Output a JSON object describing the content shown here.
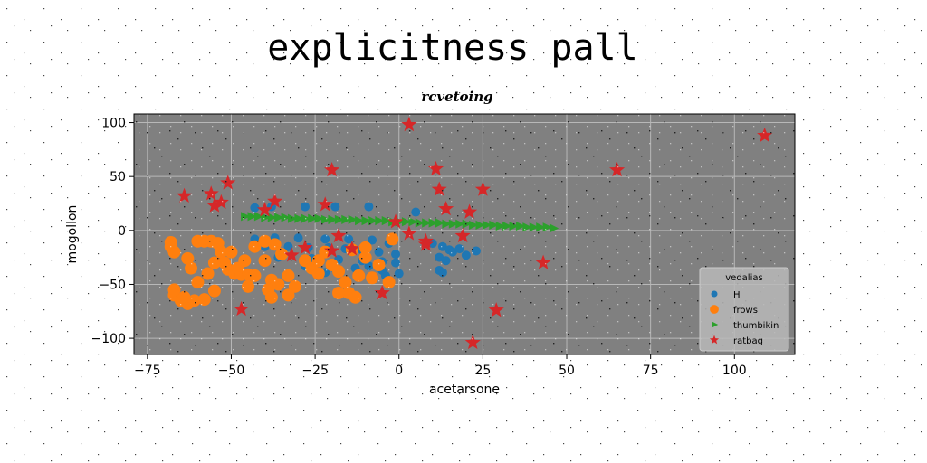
{
  "chart_data": {
    "type": "scatter",
    "suptitle": "explicitness pall",
    "title": "rcvetoing",
    "xlabel": "acetarsone",
    "ylabel": "mogollon",
    "xlim": [
      -79,
      118
    ],
    "ylim": [
      -115,
      108
    ],
    "xticks": [
      -75,
      -50,
      -25,
      0,
      25,
      50,
      75,
      100
    ],
    "yticks": [
      -100,
      -50,
      0,
      50,
      100
    ],
    "grid": true,
    "legend": {
      "title": "vedalias",
      "placement": "lower-right"
    },
    "colors": {
      "plot_bg": "#808080",
      "grid": "#b8b8b8"
    },
    "series": [
      {
        "name": "H",
        "marker": "circle",
        "color": "#1f77b4",
        "points": [
          [
            -43,
            21
          ],
          [
            -38,
            22
          ],
          [
            -28,
            22
          ],
          [
            -19,
            22
          ],
          [
            -9,
            22
          ],
          [
            5,
            17
          ],
          [
            -43,
            -8
          ],
          [
            -37,
            -7
          ],
          [
            -30,
            -7
          ],
          [
            -22,
            -8
          ],
          [
            -15,
            -8
          ],
          [
            -8,
            -9
          ],
          [
            -3,
            -12
          ],
          [
            -40,
            -15
          ],
          [
            -33,
            -15
          ],
          [
            -27,
            -16
          ],
          [
            -21,
            -16
          ],
          [
            -16,
            -17
          ],
          [
            -11,
            -18
          ],
          [
            -6,
            -20
          ],
          [
            -36,
            -25
          ],
          [
            -26,
            -26
          ],
          [
            -18,
            -27
          ],
          [
            -11,
            -28
          ],
          [
            -5,
            -29
          ],
          [
            -1,
            -30
          ],
          [
            -28,
            -33
          ],
          [
            -20,
            -34
          ],
          [
            -13,
            -35
          ],
          [
            -5,
            -37
          ],
          [
            -22,
            -39
          ],
          [
            -12,
            -40
          ],
          [
            -4,
            -42
          ],
          [
            0,
            -40
          ],
          [
            10,
            -12
          ],
          [
            13,
            -15
          ],
          [
            15,
            -18
          ],
          [
            16,
            -20
          ],
          [
            18,
            -17
          ],
          [
            12,
            -25
          ],
          [
            14,
            -28
          ],
          [
            23,
            -19
          ],
          [
            20,
            -23
          ],
          [
            12,
            -37
          ],
          [
            13,
            -39
          ],
          [
            -9,
            -33
          ],
          [
            -1,
            -22
          ]
        ]
      },
      {
        "name": "frows",
        "marker": "circle",
        "color": "#ff7f0e",
        "points": [
          [
            -68,
            -11
          ],
          [
            -68,
            -15
          ],
          [
            -67,
            -20
          ],
          [
            -67,
            -55
          ],
          [
            -67,
            -60
          ],
          [
            -65,
            -65
          ],
          [
            -63,
            -68
          ],
          [
            -60,
            -10
          ],
          [
            -58,
            -10
          ],
          [
            -56,
            -10
          ],
          [
            -54,
            -12
          ],
          [
            -53,
            -20
          ],
          [
            -52,
            -30
          ],
          [
            -51,
            -36
          ],
          [
            -49,
            -40
          ],
          [
            -47,
            -41
          ],
          [
            -45,
            -41
          ],
          [
            -43,
            -42
          ],
          [
            -64,
            -62
          ],
          [
            -61,
            -65
          ],
          [
            -58,
            -64
          ],
          [
            -55,
            -56
          ],
          [
            -63,
            -26
          ],
          [
            -62,
            -35
          ],
          [
            -60,
            -48
          ],
          [
            -40,
            -10
          ],
          [
            -37,
            -13
          ],
          [
            -35,
            -22
          ],
          [
            -40,
            -28
          ],
          [
            -38,
            -46
          ],
          [
            -36,
            -50
          ],
          [
            -39,
            -55
          ],
          [
            -38,
            -62
          ],
          [
            -33,
            -42
          ],
          [
            -31,
            -52
          ],
          [
            -28,
            -28
          ],
          [
            -26,
            -35
          ],
          [
            -24,
            -28
          ],
          [
            -22,
            -20
          ],
          [
            -20,
            -32
          ],
          [
            -18,
            -38
          ],
          [
            -16,
            -48
          ],
          [
            -15,
            -58
          ],
          [
            -13,
            -62
          ],
          [
            -12,
            -42
          ],
          [
            -18,
            -58
          ],
          [
            -10,
            -16
          ],
          [
            -10,
            -25
          ],
          [
            -6,
            -32
          ],
          [
            -3,
            -48
          ],
          [
            -2,
            -8
          ],
          [
            -43,
            -15
          ],
          [
            -46,
            -28
          ],
          [
            -48,
            -35
          ],
          [
            -50,
            -20
          ],
          [
            -55,
            -30
          ],
          [
            -57,
            -40
          ],
          [
            -45,
            -52
          ],
          [
            -33,
            -60
          ],
          [
            -24,
            -40
          ],
          [
            -14,
            -18
          ],
          [
            -8,
            -44
          ]
        ]
      },
      {
        "name": "thumbikin",
        "marker": "triangle",
        "color": "#2ca02c",
        "points": [
          [
            -46,
            13
          ],
          [
            -44,
            13
          ],
          [
            -42,
            13
          ],
          [
            -40,
            12
          ],
          [
            -38,
            12
          ],
          [
            -36,
            12
          ],
          [
            -34,
            12
          ],
          [
            -32,
            11
          ],
          [
            -30,
            11
          ],
          [
            -28,
            11
          ],
          [
            -26,
            11
          ],
          [
            -24,
            11
          ],
          [
            -22,
            10
          ],
          [
            -20,
            10
          ],
          [
            -18,
            10
          ],
          [
            -16,
            10
          ],
          [
            -14,
            10
          ],
          [
            -12,
            9
          ],
          [
            -10,
            9
          ],
          [
            -8,
            9
          ],
          [
            -6,
            9
          ],
          [
            -4,
            9
          ],
          [
            -2,
            8
          ],
          [
            0,
            8
          ],
          [
            2,
            8
          ],
          [
            4,
            8
          ],
          [
            6,
            7
          ],
          [
            8,
            7
          ],
          [
            10,
            7
          ],
          [
            12,
            7
          ],
          [
            14,
            6
          ],
          [
            16,
            6
          ],
          [
            18,
            6
          ],
          [
            20,
            6
          ],
          [
            22,
            5
          ],
          [
            24,
            5
          ],
          [
            26,
            5
          ],
          [
            28,
            5
          ],
          [
            30,
            4
          ],
          [
            32,
            4
          ],
          [
            34,
            4
          ],
          [
            36,
            4
          ],
          [
            38,
            3
          ],
          [
            40,
            3
          ],
          [
            42,
            3
          ],
          [
            44,
            3
          ],
          [
            46,
            2
          ]
        ]
      },
      {
        "name": "ratbag",
        "marker": "star",
        "color": "#d62728",
        "points": [
          [
            109,
            88
          ],
          [
            3,
            98
          ],
          [
            65,
            56
          ],
          [
            11,
            57
          ],
          [
            -20,
            56
          ],
          [
            -51,
            44
          ],
          [
            12,
            38
          ],
          [
            25,
            38
          ],
          [
            -64,
            32
          ],
          [
            -56,
            34
          ],
          [
            -53,
            26
          ],
          [
            -55,
            23
          ],
          [
            -37,
            27
          ],
          [
            -40,
            19
          ],
          [
            -22,
            24
          ],
          [
            14,
            20
          ],
          [
            21,
            17
          ],
          [
            -1,
            8
          ],
          [
            3,
            -3
          ],
          [
            -18,
            -5
          ],
          [
            19,
            -5
          ],
          [
            8,
            -10
          ],
          [
            8,
            -13
          ],
          [
            -28,
            -16
          ],
          [
            -20,
            -19
          ],
          [
            -14,
            -17
          ],
          [
            -32,
            -23
          ],
          [
            43,
            -30
          ],
          [
            -5,
            -58
          ],
          [
            -47,
            -73
          ],
          [
            29,
            -74
          ],
          [
            22,
            -104
          ]
        ]
      }
    ]
  }
}
